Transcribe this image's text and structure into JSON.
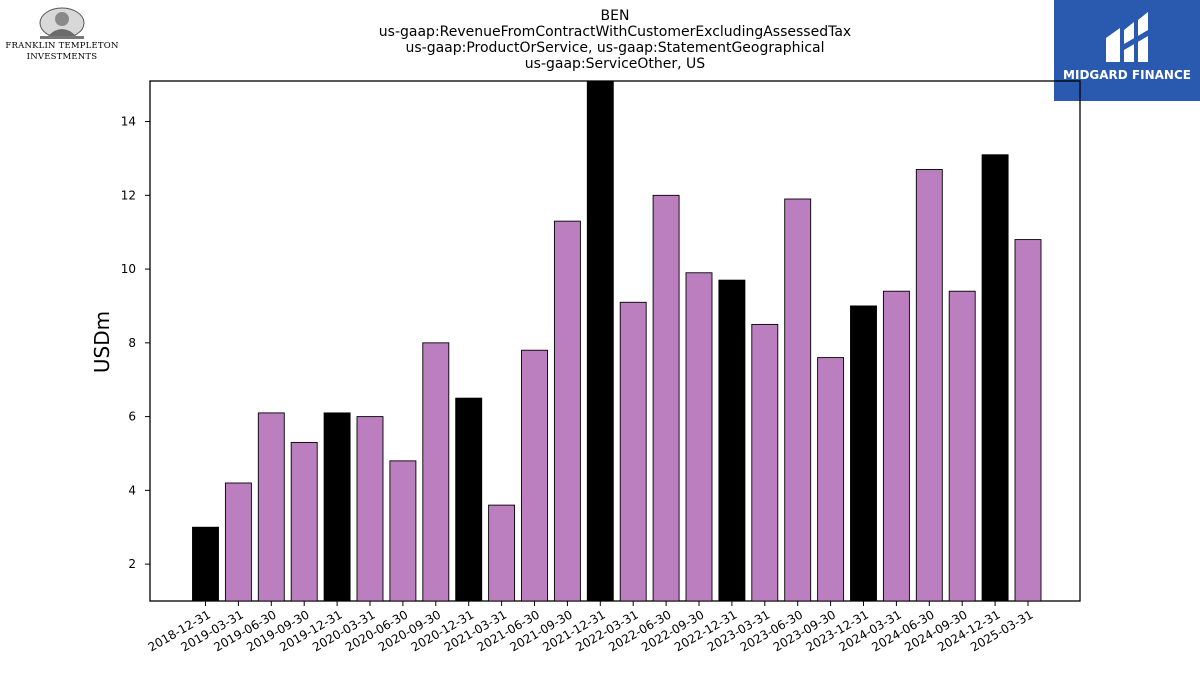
{
  "header": {
    "title_lines": [
      "BEN",
      "us-gaap:RevenueFromContractWithCustomerExcludingAssessedTax",
      "us-gaap:ProductOrService, us-gaap:StatementGeographical",
      "us-gaap:ServiceOther, US"
    ]
  },
  "logos": {
    "left_line1": "FRANKLIN TEMPLETON",
    "left_line2": "INVESTMENTS",
    "right_text": "MIDGARD FINANCE",
    "right_bg": "#2a5aaf"
  },
  "chart_data": {
    "type": "bar",
    "ylabel": "USDm",
    "xlabel": "",
    "ylim": [
      1,
      15.1
    ],
    "yticks": [
      2,
      4,
      6,
      8,
      10,
      12,
      14
    ],
    "grid": false,
    "colors": {
      "quarter": "#bb7fbf",
      "year_end": "#000000",
      "edge": "#000000"
    },
    "categories": [
      "2018-12-31",
      "2019-03-31",
      "2019-06-30",
      "2019-09-30",
      "2019-12-31",
      "2020-03-31",
      "2020-06-30",
      "2020-09-30",
      "2020-12-31",
      "2021-03-31",
      "2021-06-30",
      "2021-09-30",
      "2021-12-31",
      "2022-03-31",
      "2022-06-30",
      "2022-09-30",
      "2022-12-31",
      "2023-03-31",
      "2023-06-30",
      "2023-09-30",
      "2023-12-31",
      "2024-03-31",
      "2024-06-30",
      "2024-09-30",
      "2024-12-31",
      "2025-03-31"
    ],
    "values": [
      3.0,
      4.2,
      6.1,
      5.3,
      6.1,
      6.0,
      4.8,
      8.0,
      6.5,
      3.6,
      7.8,
      11.3,
      15.2,
      9.1,
      12.0,
      9.9,
      9.7,
      8.5,
      11.9,
      7.6,
      9.0,
      9.4,
      12.7,
      9.4,
      13.1,
      10.8
    ]
  }
}
